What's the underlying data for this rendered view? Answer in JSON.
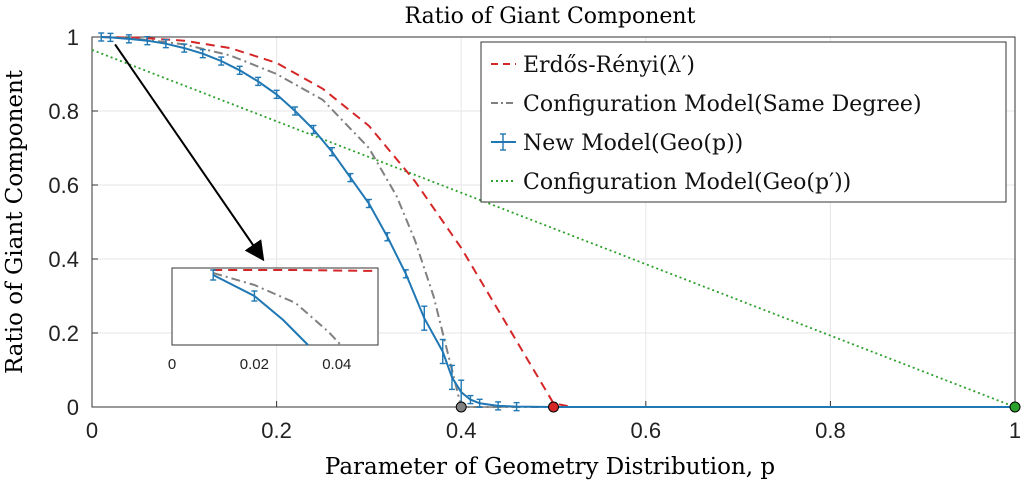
{
  "chart_data": {
    "type": "line",
    "title": "Ratio of Giant Component",
    "xlabel": "Parameter of Geometry Distribution, p",
    "ylabel": "Ratio of Giant Component",
    "xlim": [
      0,
      1
    ],
    "ylim": [
      0,
      1
    ],
    "xticks": [
      "0",
      "0.2",
      "0.4",
      "0.6",
      "0.8",
      "1"
    ],
    "yticks": [
      "0",
      "0.2",
      "0.4",
      "0.6",
      "0.8",
      "1"
    ],
    "grid": true,
    "legend_placement": "top-right",
    "series": [
      {
        "name": "Erdős-Rényi(λ′)",
        "color": "#d62728",
        "style": "dashed",
        "x": [
          0.01,
          0.05,
          0.1,
          0.15,
          0.2,
          0.25,
          0.3,
          0.35,
          0.4,
          0.45,
          0.5,
          0.52,
          0.6,
          0.8,
          1.0
        ],
        "y": [
          1.0,
          0.998,
          0.99,
          0.97,
          0.93,
          0.86,
          0.76,
          0.61,
          0.43,
          0.22,
          0.01,
          0.0,
          0.0,
          0.0,
          0.0
        ]
      },
      {
        "name": "Configuration Model(Same Degree)",
        "color": "#808080",
        "style": "dashdot",
        "x": [
          0.01,
          0.05,
          0.1,
          0.15,
          0.2,
          0.25,
          0.3,
          0.33,
          0.35,
          0.37,
          0.39,
          0.4,
          0.42,
          0.6,
          0.8,
          1.0
        ],
        "y": [
          1.0,
          0.995,
          0.98,
          0.95,
          0.9,
          0.83,
          0.7,
          0.57,
          0.45,
          0.3,
          0.1,
          0.0,
          0.0,
          0.0,
          0.0,
          0.0
        ]
      },
      {
        "name": "New Model(Geo(p))",
        "color": "#1f77b4",
        "style": "solid-errorbar",
        "x": [
          0.01,
          0.02,
          0.04,
          0.06,
          0.08,
          0.1,
          0.12,
          0.14,
          0.16,
          0.18,
          0.2,
          0.22,
          0.24,
          0.26,
          0.28,
          0.3,
          0.32,
          0.34,
          0.36,
          0.38,
          0.39,
          0.4,
          0.41,
          0.42,
          0.44,
          0.46,
          0.5,
          0.6,
          0.8,
          1.0
        ],
        "y": [
          1.0,
          0.999,
          0.995,
          0.99,
          0.982,
          0.97,
          0.955,
          0.935,
          0.91,
          0.88,
          0.845,
          0.8,
          0.75,
          0.69,
          0.62,
          0.55,
          0.46,
          0.36,
          0.24,
          0.15,
          0.08,
          0.04,
          0.02,
          0.01,
          0.003,
          0.001,
          0.0,
          0.0,
          0.0,
          0.0
        ]
      },
      {
        "name": "Configuration Model(Geo(p′))",
        "color": "#2ca02c",
        "style": "dotted",
        "x": [
          0.0,
          1.0
        ],
        "y": [
          0.965,
          0.0
        ]
      }
    ],
    "endpoint_markers": [
      {
        "x": 0.4,
        "y": 0.0,
        "color": "#808080"
      },
      {
        "x": 0.5,
        "y": 0.0,
        "color": "#d62728"
      },
      {
        "x": 1.0,
        "y": 0.0,
        "color": "#2ca02c"
      }
    ],
    "inset": {
      "xlim": [
        0,
        0.05
      ],
      "xticks": [
        "0",
        "0.02",
        "0.04"
      ]
    }
  }
}
